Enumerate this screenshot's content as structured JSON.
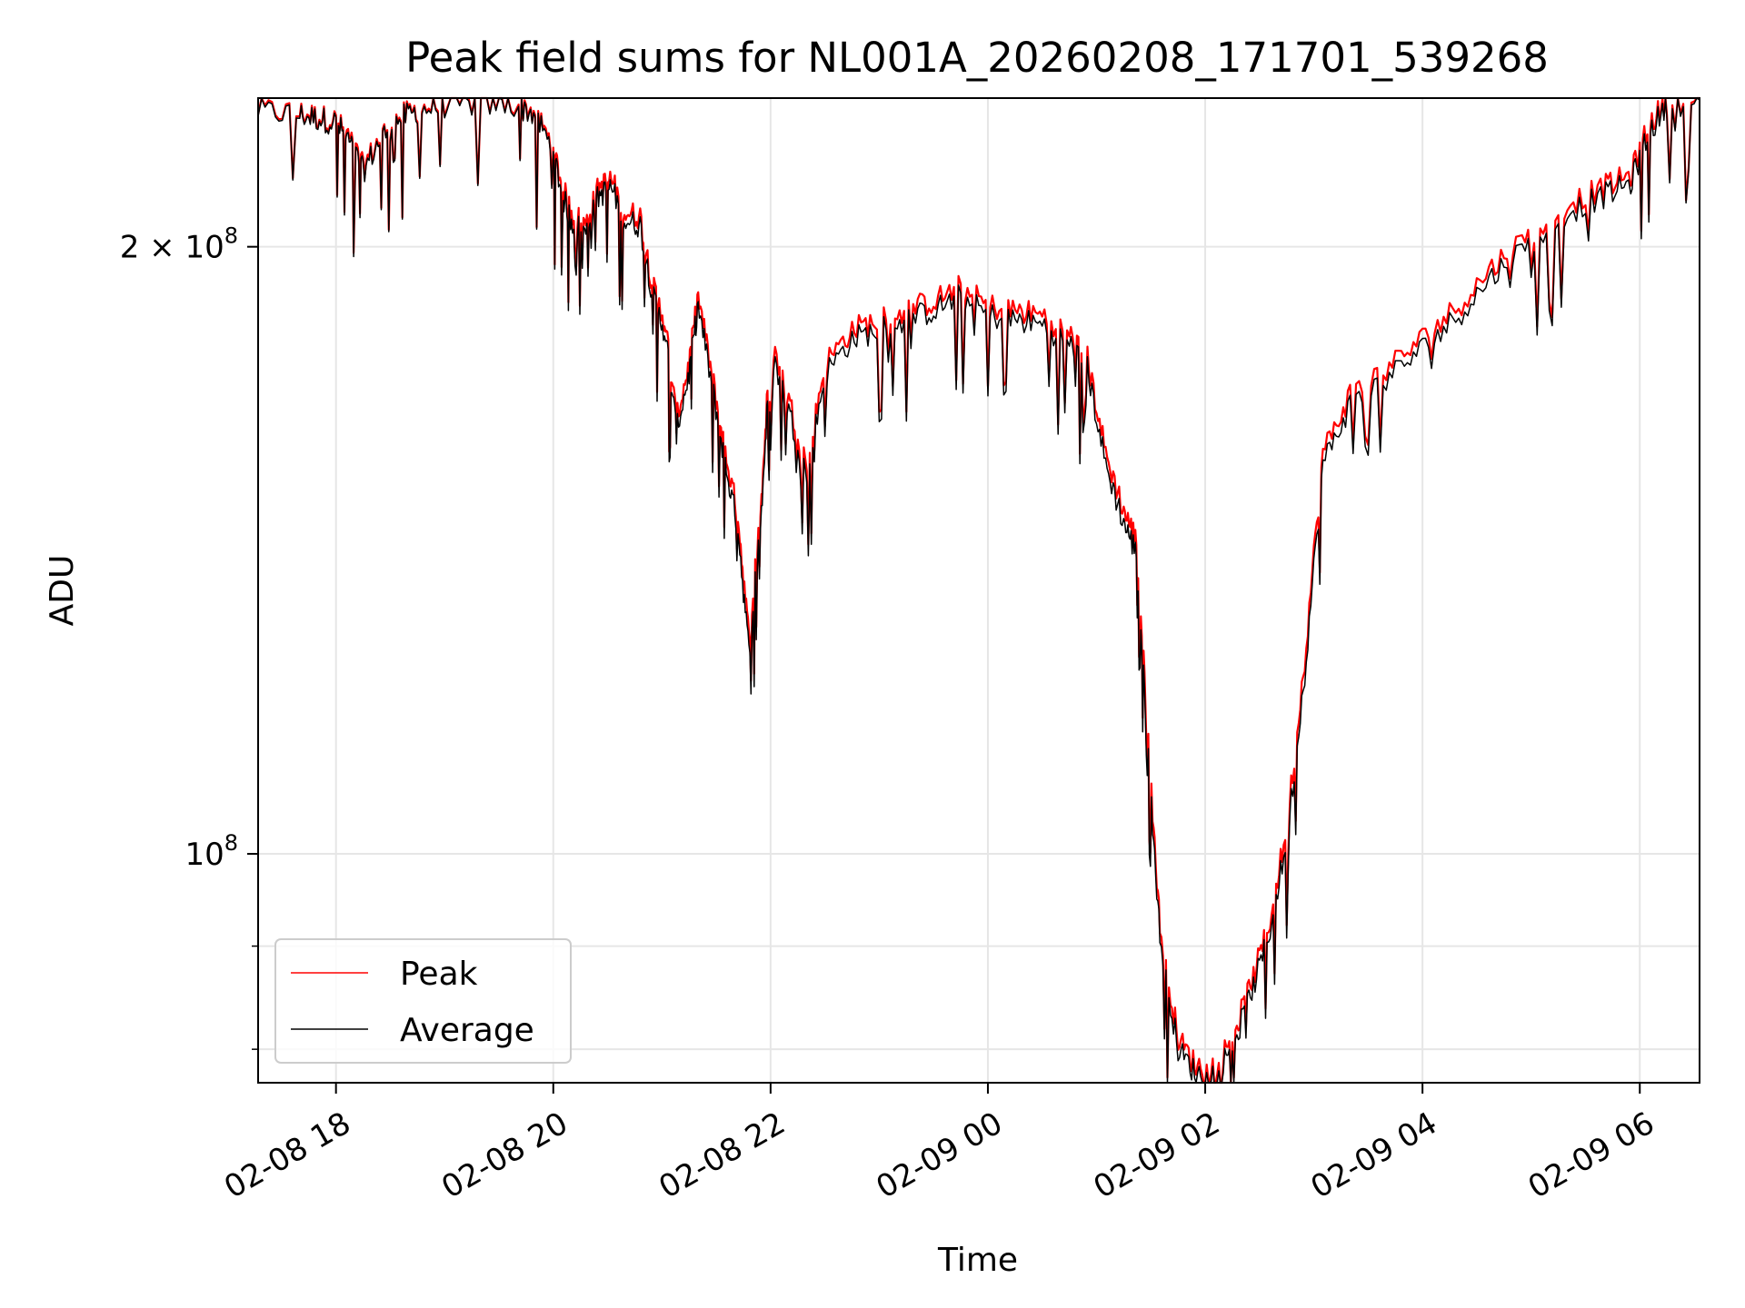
{
  "chart_data": {
    "type": "line",
    "title": "Peak field sums for NL001A_20260208_171701_539268",
    "xlabel": "Time",
    "ylabel": "ADU",
    "y_scale": "log",
    "xlim": [
      "2026-02-08 17:17",
      "2026-02-09 06:33"
    ],
    "ylim": [
      77000000,
      237000000
    ],
    "x_ticks": [
      "02-08 18",
      "02-08 20",
      "02-08 22",
      "02-09 00",
      "02-09 02",
      "02-09 04",
      "02-09 06"
    ],
    "y_ticks": [
      {
        "value": 100000000,
        "mantissa": "",
        "base": "10",
        "exponent": "8"
      },
      {
        "value": 200000000,
        "mantissa": "2 × ",
        "base": "10",
        "exponent": "8"
      }
    ],
    "y_minor_ticks": [
      80000000,
      90000000
    ],
    "grid": true,
    "legend_position": "lower-left",
    "x": [
      "2026-02-08 17:17",
      "2026-02-08 17:40",
      "2026-02-08 17:50",
      "2026-02-08 18:00",
      "2026-02-08 18:08",
      "2026-02-08 18:15",
      "2026-02-08 18:25",
      "2026-02-08 18:35",
      "2026-02-08 18:45",
      "2026-02-08 19:00",
      "2026-02-08 19:20",
      "2026-02-08 19:40",
      "2026-02-08 19:50",
      "2026-02-08 20:00",
      "2026-02-08 20:05",
      "2026-02-08 20:10",
      "2026-02-08 20:18",
      "2026-02-08 20:25",
      "2026-02-08 20:32",
      "2026-02-08 20:40",
      "2026-02-08 20:48",
      "2026-02-08 20:55",
      "2026-02-08 21:02",
      "2026-02-08 21:08",
      "2026-02-08 21:15",
      "2026-02-08 21:20",
      "2026-02-08 21:28",
      "2026-02-08 21:35",
      "2026-02-08 21:42",
      "2026-02-08 21:48",
      "2026-02-08 21:55",
      "2026-02-08 22:00",
      "2026-02-08 22:10",
      "2026-02-08 22:20",
      "2026-02-08 22:30",
      "2026-02-08 22:45",
      "2026-02-08 23:00",
      "2026-02-08 23:15",
      "2026-02-08 23:30",
      "2026-02-08 23:45",
      "2026-02-09 00:00",
      "2026-02-09 00:15",
      "2026-02-09 00:30",
      "2026-02-09 00:45",
      "2026-02-09 00:55",
      "2026-02-09 01:05",
      "2026-02-09 01:15",
      "2026-02-09 01:22",
      "2026-02-09 01:28",
      "2026-02-09 01:35",
      "2026-02-09 01:45",
      "2026-02-09 01:55",
      "2026-02-09 02:05",
      "2026-02-09 02:15",
      "2026-02-09 02:25",
      "2026-02-09 02:35",
      "2026-02-09 02:45",
      "2026-02-09 02:55",
      "2026-02-09 03:05",
      "2026-02-09 03:20",
      "2026-02-09 03:40",
      "2026-02-09 04:00",
      "2026-02-09 04:20",
      "2026-02-09 04:40",
      "2026-02-09 05:00",
      "2026-02-09 05:20",
      "2026-02-09 05:40",
      "2026-02-09 05:55",
      "2026-02-09 06:05",
      "2026-02-09 06:15",
      "2026-02-09 06:33"
    ],
    "series": [
      {
        "name": "Peak",
        "color": "#ff0000",
        "values": [
          234000000,
          233000000,
          232000000,
          231000000,
          226000000,
          219000000,
          227000000,
          232000000,
          234000000,
          235500000,
          236000000,
          235500000,
          233000000,
          224000000,
          214000000,
          208000000,
          205000000,
          214000000,
          216000000,
          208000000,
          207000000,
          191000000,
          183000000,
          164000000,
          175000000,
          189000000,
          172000000,
          158000000,
          147000000,
          128000000,
          150000000,
          180000000,
          168000000,
          156000000,
          175000000,
          182000000,
          184000000,
          186000000,
          188000000,
          191000000,
          187000000,
          186000000,
          185000000,
          181000000,
          176000000,
          158000000,
          148000000,
          143000000,
          116000000,
          92000000,
          81000000,
          78500000,
          78500000,
          81000000,
          86000000,
          92000000,
          103000000,
          125000000,
          158000000,
          169000000,
          174000000,
          180000000,
          187000000,
          196000000,
          203000000,
          210000000,
          214000000,
          217000000,
          230000000,
          236000000,
          237000000
        ]
      },
      {
        "name": "Average",
        "color": "#000000",
        "values": [
          233500000,
          232500000,
          231500000,
          230500000,
          225000000,
          218000000,
          226500000,
          231500000,
          233500000,
          235000000,
          235500000,
          235000000,
          232500000,
          223000000,
          212000000,
          206000000,
          203000000,
          212000000,
          214000000,
          206000000,
          205000000,
          189000000,
          181000000,
          162000000,
          173000000,
          187000000,
          170000000,
          156000000,
          145000000,
          126000000,
          148000000,
          178000000,
          166000000,
          154000000,
          173000000,
          180000000,
          182000000,
          184000000,
          186000000,
          189000000,
          185000000,
          184000000,
          183000000,
          179000000,
          174000000,
          156000000,
          146000000,
          141000000,
          114000000,
          91000000,
          80000000,
          77800000,
          77800000,
          80200000,
          85000000,
          91000000,
          101500000,
          123000000,
          156000000,
          167000000,
          172000000,
          178000000,
          185000000,
          194000000,
          201000000,
          208000000,
          212000000,
          215000000,
          228000000,
          235000000,
          236500000
        ]
      }
    ]
  }
}
